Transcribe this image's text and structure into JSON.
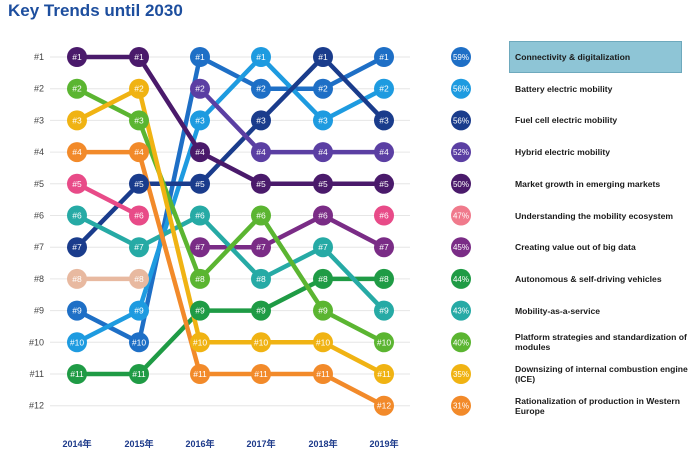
{
  "title": "Key Trends until 2030",
  "chart_data": {
    "type": "line",
    "title": "Key Trends until 2030",
    "x": [
      "2014年",
      "2015年",
      "2016年",
      "2017年",
      "2018年",
      "2019年"
    ],
    "y_ticks": [
      "#1",
      "#2",
      "#3",
      "#4",
      "#5",
      "#6",
      "#7",
      "#8",
      "#9",
      "#10",
      "#11",
      "#12"
    ],
    "ylim": [
      1,
      12
    ],
    "y_inverted": true,
    "highlighted_trend": "Connectivity & digitalization",
    "series": [
      {
        "name": "Connectivity & digitalization",
        "color": "#1e6fc6",
        "values": [
          9,
          10,
          1,
          2,
          2,
          1
        ],
        "percent": "59%"
      },
      {
        "name": "Battery electric mobility",
        "color": "#1e9be0",
        "values": [
          10,
          9,
          3,
          1,
          3,
          2
        ],
        "percent": "56%"
      },
      {
        "name": "Fuel cell electric mobility",
        "color": "#1a3c8c",
        "values": [
          7,
          5,
          5,
          3,
          1,
          3
        ],
        "percent": "56%"
      },
      {
        "name": "Hybrid electric mobility",
        "color": "#5b3fa3",
        "values": [
          null,
          null,
          2,
          4,
          4,
          4
        ],
        "percent": "52%"
      },
      {
        "name": "Market growth in emerging markets",
        "color": "#4a1a6b",
        "values": [
          1,
          1,
          4,
          5,
          5,
          5
        ],
        "percent": "50%"
      },
      {
        "name": "Understanding the mobility ecosystem",
        "color": "#e84b88",
        "values": [
          5,
          6,
          null,
          null,
          null,
          6
        ],
        "percent": "47%"
      },
      {
        "name": "Creating value out of big data",
        "color": "#7a2c86",
        "values": [
          null,
          null,
          7,
          7,
          6,
          7
        ],
        "percent": "45%"
      },
      {
        "name": "Autonomous & self-driving vehicles",
        "color": "#1f9b45",
        "values": [
          11,
          11,
          9,
          9,
          8,
          8
        ],
        "percent": "44%"
      },
      {
        "name": "Mobility-as-a-service",
        "color": "#26aaa5",
        "values": [
          6,
          7,
          6,
          8,
          7,
          9
        ],
        "percent": "43%"
      },
      {
        "name": "Platform strategies and standardization of modules",
        "color": "#5bb531",
        "values": [
          2,
          3,
          8,
          6,
          9,
          10
        ],
        "percent": "40%"
      },
      {
        "name": "Downsizing of internal combustion engine (ICE)",
        "color": "#f0b313",
        "values": [
          3,
          2,
          10,
          10,
          10,
          11
        ],
        "percent": "35%"
      },
      {
        "name": "Rationalization of production in Western Europe",
        "color": "#f28a2a",
        "values": [
          4,
          4,
          11,
          11,
          11,
          12
        ],
        "percent": "31%"
      },
      {
        "name": "",
        "color": "#e8b9a0",
        "values": [
          8,
          8,
          null,
          null,
          null,
          null
        ],
        "percent": ""
      }
    ],
    "percent_colors": [
      "#1e6fc6",
      "#1e9be0",
      "#1a3c8c",
      "#5b3fa3",
      "#4a1a6b",
      "#f07a8c",
      "#7a2c86",
      "#1f9b45",
      "#26aaa5",
      "#5bb531",
      "#f0b313",
      "#f28a2a"
    ]
  }
}
